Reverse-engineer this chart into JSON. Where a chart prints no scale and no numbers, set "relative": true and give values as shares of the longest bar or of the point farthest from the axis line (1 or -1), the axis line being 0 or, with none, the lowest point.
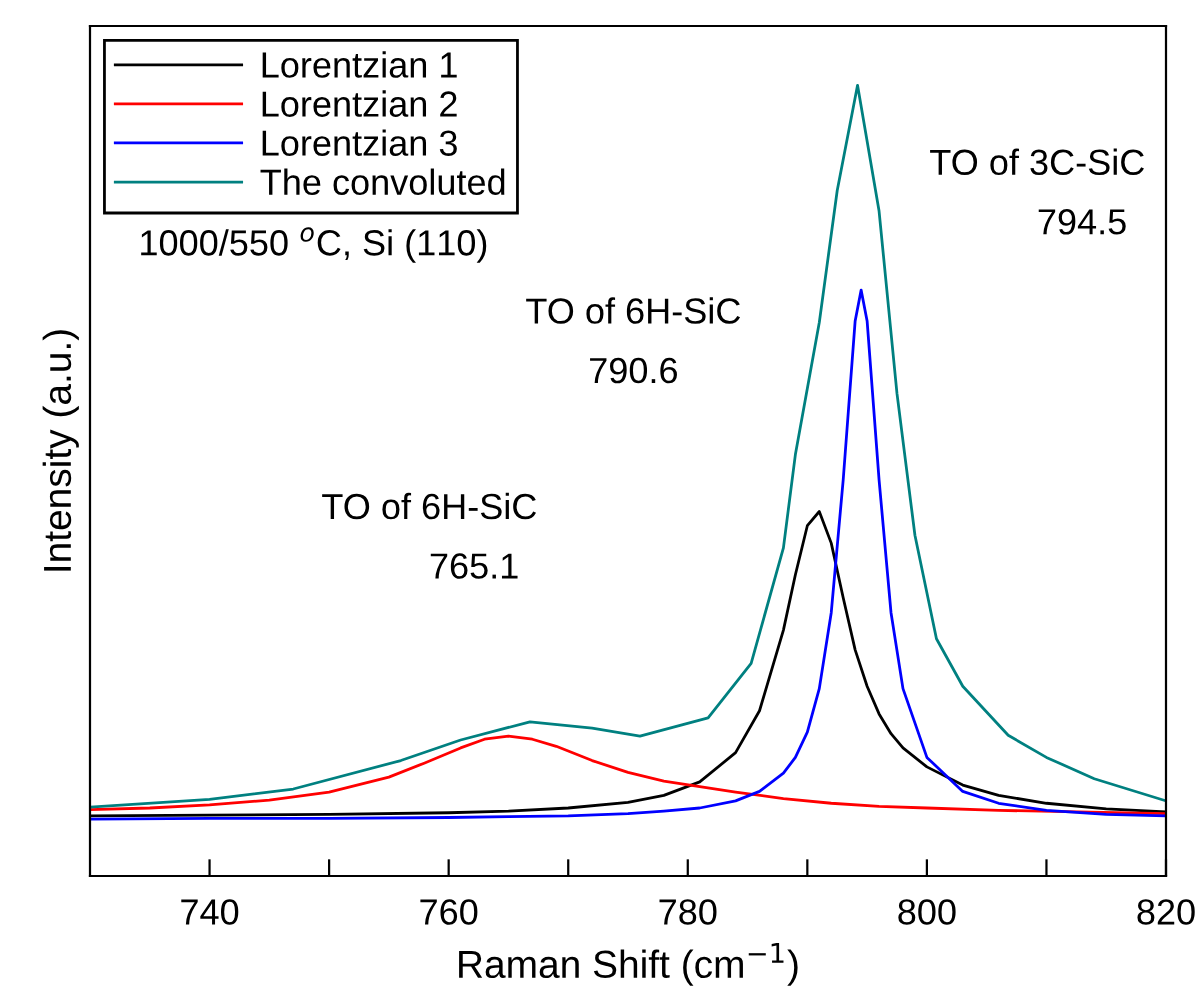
{
  "chart_data": {
    "type": "line",
    "relative": true,
    "xlabel": "Raman Shift (cm$^{−1}$)",
    "ylabel": "Intensity (a.u.)",
    "xlim": [
      730,
      820
    ],
    "xticks": [
      740,
      {
        "value": 750,
        "label": null
      },
      760,
      {
        "value": 770,
        "label": null
      },
      780,
      {
        "value": 790,
        "label": null
      },
      800,
      {
        "value": 810,
        "label": null
      },
      820
    ],
    "tick_labels": "x",
    "grid": false,
    "legend": "top left",
    "marker": "none",
    "line_style": "solid",
    "annotations": [
      "1000/550 $^{o}$C, Si (110)",
      "TO of 6H-SiC\n765.1",
      "TO of 6H-SiC\n790.6",
      "TO of 3C-SiC\n794.5"
    ],
    "series": [
      {
        "name": "Lorentzian 1",
        "color": "#000000",
        "x": [
          730,
          740,
          750,
          760,
          765,
          770,
          775,
          778,
          781,
          784,
          786,
          788,
          789,
          790,
          791,
          792,
          793,
          794,
          795,
          796,
          797,
          798,
          800,
          803,
          806,
          810,
          815,
          820
        ],
        "values": [
          0.076,
          0.077,
          0.078,
          0.08,
          0.082,
          0.086,
          0.093,
          0.102,
          0.119,
          0.156,
          0.209,
          0.311,
          0.381,
          0.443,
          0.461,
          0.421,
          0.352,
          0.286,
          0.24,
          0.205,
          0.18,
          0.162,
          0.138,
          0.115,
          0.102,
          0.092,
          0.085,
          0.081
        ]
      },
      {
        "name": "Lorentzian 2",
        "color": "#ff0000",
        "x": [
          730,
          735,
          740,
          745,
          750,
          755,
          758,
          761,
          763,
          765,
          767,
          769,
          772,
          775,
          778,
          781,
          784,
          788,
          792,
          796,
          800,
          806,
          820
        ],
        "values": [
          0.084,
          0.086,
          0.09,
          0.096,
          0.106,
          0.125,
          0.143,
          0.162,
          0.173,
          0.177,
          0.173,
          0.164,
          0.146,
          0.131,
          0.12,
          0.113,
          0.106,
          0.098,
          0.092,
          0.088,
          0.086,
          0.083,
          0.079
        ]
      },
      {
        "name": "Lorentzian 3",
        "color": "#0000ff",
        "x": [
          730,
          740,
          750,
          760,
          765,
          770,
          775,
          778,
          781,
          784,
          786,
          788,
          789,
          790,
          791,
          792,
          793,
          794,
          794.5,
          795,
          796,
          797,
          798,
          800,
          803,
          806,
          810,
          815,
          820
        ],
        "values": [
          0.072,
          0.073,
          0.073,
          0.074,
          0.075,
          0.076,
          0.079,
          0.082,
          0.086,
          0.095,
          0.107,
          0.13,
          0.15,
          0.182,
          0.237,
          0.333,
          0.501,
          0.702,
          0.741,
          0.702,
          0.501,
          0.333,
          0.237,
          0.15,
          0.107,
          0.092,
          0.083,
          0.078,
          0.076
        ]
      },
      {
        "name": "The convoluted",
        "color": "#008080",
        "x": [
          730,
          740,
          747,
          756,
          761,
          766.8,
          772,
          776,
          781.7,
          785.3,
          788,
          789,
          791,
          792.5,
          794.2,
          796,
          797.5,
          799,
          800.8,
          803,
          806.8,
          810,
          814,
          820
        ],
        "values": [
          0.087,
          0.097,
          0.11,
          0.146,
          0.172,
          0.195,
          0.187,
          0.177,
          0.2,
          0.269,
          0.415,
          0.533,
          0.7,
          0.867,
          1.0,
          0.841,
          0.61,
          0.431,
          0.3,
          0.24,
          0.178,
          0.15,
          0.123,
          0.095
        ]
      }
    ]
  }
}
